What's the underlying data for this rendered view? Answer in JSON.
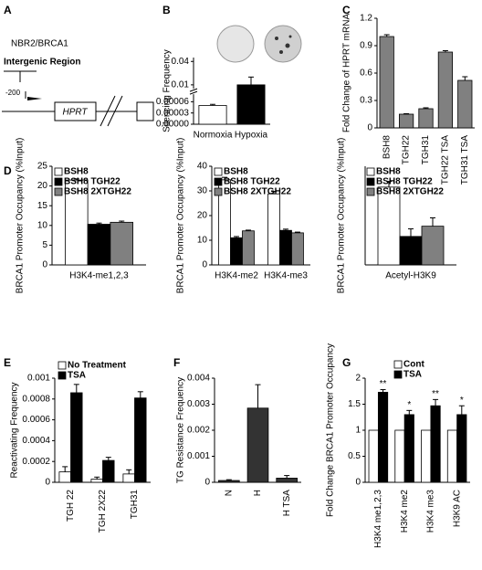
{
  "diagram": {
    "panel_label": "A",
    "texts": [
      "NBR2/BRCA1",
      "Intergenic Region",
      "-200",
      "HPRT"
    ]
  },
  "chart_data": [
    {
      "type": "bar",
      "panel_label": "B",
      "ylabel": "Silencing Frequency",
      "categories": [
        "Normoxia",
        "Hypoxia"
      ],
      "values": [
        5e-05,
        0.01
      ],
      "errors": [
        3e-06,
        0.01
      ],
      "colors": [
        "#ffffff",
        "#000000"
      ],
      "ylim": [
        0,
        0.045
      ],
      "ylim_break": [
        8e-05,
        0.005
      ],
      "yticks": [
        {
          "value": 0,
          "label": "0.00000"
        },
        {
          "value": 3e-05,
          "label": "0.00003"
        },
        {
          "value": 6e-05,
          "label": "0.00006"
        },
        0.01,
        0.04
      ]
    },
    {
      "type": "bar",
      "panel_label": "C",
      "ylabel": "Fold Change of HPRT mRNA",
      "categories": [
        "BSH8",
        "TGH22",
        "TGH31",
        "TGH22 TSA",
        "TGH31 TSA"
      ],
      "values": [
        1.0,
        0.15,
        0.21,
        0.83,
        0.52
      ],
      "errors": [
        0.02,
        0.005,
        0.01,
        0.015,
        0.04
      ],
      "color": "#808080",
      "ylim": [
        0,
        1.2
      ],
      "yticks": [
        0,
        0.3,
        0.6,
        0.9,
        1.2
      ]
    },
    {
      "type": "bar",
      "panel_label": "D",
      "ylabel": "BRCA1 Promoter Occupancy (%Input)",
      "categories": [
        "H3K4-me1,2,3"
      ],
      "series": [
        {
          "name": "BSH8",
          "color": "#ffffff",
          "values": [
            21.5
          ],
          "errors": [
            0.3
          ]
        },
        {
          "name": "BSH8 TGH22",
          "color": "#000000",
          "values": [
            10.3
          ],
          "errors": [
            0.3
          ]
        },
        {
          "name": "BSH8 2XTGH22",
          "color": "#808080",
          "values": [
            10.8
          ],
          "errors": [
            0.3
          ]
        }
      ],
      "ylim": [
        0,
        25
      ],
      "yticks": [
        0,
        5,
        10,
        15,
        20,
        25
      ]
    },
    {
      "type": "bar",
      "ylabel": "BRCA1 Promoter Occupancy (%Input)",
      "categories": [
        "H3K4-me2",
        "H3K4-me3"
      ],
      "series": [
        {
          "name": "BSH8",
          "color": "#ffffff",
          "values": [
            34.5,
            28.8
          ],
          "errors": [
            1,
            1
          ]
        },
        {
          "name": "BSH8 TGH22",
          "color": "#000000",
          "values": [
            11,
            14
          ],
          "errors": [
            0.5,
            0.5
          ]
        },
        {
          "name": "BSH8 2XTGH22",
          "color": "#808080",
          "values": [
            13.8,
            13
          ],
          "errors": [
            0.3,
            0.3
          ]
        }
      ],
      "ylim": [
        0,
        40
      ],
      "yticks": [
        0,
        10,
        20,
        30,
        40
      ]
    },
    {
      "type": "bar",
      "ylabel": "BRCA1 Promoter Occupancy (%Input)",
      "categories": [
        "Acetyl-H3K9"
      ],
      "series": [
        {
          "name": "BSH8",
          "color": "#ffffff",
          "values": [
            2.05
          ],
          "errors": [
            0.15
          ]
        },
        {
          "name": "BSH8 TGH22",
          "color": "#000000",
          "values": [
            0.75
          ],
          "errors": [
            0.2
          ]
        },
        {
          "name": "BSH8 2XTGH22",
          "color": "#808080",
          "values": [
            1.02
          ],
          "errors": [
            0.22
          ]
        }
      ],
      "ylim": [
        0,
        2.6
      ]
    },
    {
      "type": "bar",
      "panel_label": "E",
      "ylabel": "Reactivating Frequency",
      "categories": [
        "TGH 22",
        "TGH 2X22",
        "TGH31"
      ],
      "series": [
        {
          "name": "No Treatment",
          "color": "#ffffff",
          "values": [
            0.0001,
            3e-05,
            8e-05
          ],
          "errors": [
            5e-05,
            2e-05,
            4e-05
          ]
        },
        {
          "name": "TSA",
          "color": "#000000",
          "values": [
            0.00086,
            0.00021,
            0.00081
          ],
          "errors": [
            8e-05,
            3e-05,
            6e-05
          ]
        }
      ],
      "ylim": [
        0,
        0.001
      ],
      "yticks": [
        0,
        0.0002,
        0.0004,
        0.0006,
        0.0008,
        0.001
      ]
    },
    {
      "type": "bar",
      "panel_label": "F",
      "ylabel": "TG Resistance Frequency",
      "categories": [
        "N",
        "H",
        "H TSA"
      ],
      "values": [
        7e-05,
        0.00285,
        0.00016
      ],
      "errors": [
        3e-05,
        0.0009,
        0.0001
      ],
      "color": "#333333",
      "ylim": [
        0,
        0.004
      ],
      "yticks": [
        0,
        0.001,
        0.002,
        0.003,
        0.004
      ]
    },
    {
      "type": "bar",
      "panel_label": "G",
      "ylabel": "Fold Change BRCA1 Promoter Occupancy",
      "categories": [
        "H3K4 me1,2,3",
        "H3K4 me2",
        "H3K4 me3",
        "H3K9 AC"
      ],
      "series": [
        {
          "name": "Cont",
          "color": "#ffffff",
          "values": [
            1,
            1,
            1,
            1
          ]
        },
        {
          "name": "TSA",
          "color": "#000000",
          "values": [
            1.73,
            1.3,
            1.47,
            1.3
          ],
          "errors": [
            0.05,
            0.08,
            0.12,
            0.17
          ]
        }
      ],
      "annotations": [
        "**",
        "*",
        "**",
        "*"
      ],
      "ylim": [
        0,
        2
      ],
      "yticks": [
        0,
        0.5,
        1,
        1.5,
        2
      ]
    }
  ]
}
